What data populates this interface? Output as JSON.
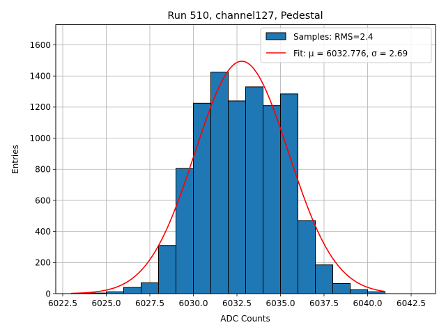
{
  "chart_data": {
    "type": "bar",
    "title": "Run 510, channel127, Pedestal",
    "xlabel": "ADC Counts",
    "ylabel": "Entries",
    "xlim": [
      6022.1,
      6043.9
    ],
    "ylim": [
      0,
      1730
    ],
    "grid": true,
    "legend_position": "top-right",
    "xticks": [
      6022.5,
      6025.0,
      6027.5,
      6030.0,
      6032.5,
      6035.0,
      6037.5,
      6040.0,
      6042.5
    ],
    "xtick_labels": [
      "6022.5",
      "6025.0",
      "6027.5",
      "6030.0",
      "6032.5",
      "6035.0",
      "6037.5",
      "6040.0",
      "6042.5"
    ],
    "yticks": [
      0,
      200,
      400,
      600,
      800,
      1000,
      1200,
      1400,
      1600
    ],
    "ytick_labels": [
      "0",
      "200",
      "400",
      "600",
      "800",
      "1000",
      "1200",
      "1400",
      "1600"
    ],
    "histogram": {
      "name": "Samples: RMS=2.4",
      "color": "#1f77b4",
      "edgecolor": "#000000",
      "bin_edges": [
        6023,
        6024,
        6025,
        6026,
        6027,
        6028,
        6029,
        6030,
        6031,
        6032,
        6033,
        6034,
        6035,
        6036,
        6037,
        6038,
        6039,
        6040,
        6041
      ],
      "counts": [
        2,
        4,
        12,
        40,
        70,
        310,
        805,
        1225,
        1425,
        1240,
        1330,
        1210,
        1285,
        470,
        185,
        65,
        25,
        12
      ]
    },
    "fit": {
      "name": "Fit: μ = 6032.776, σ = 2.69",
      "color": "#ff0000",
      "mu": 6032.776,
      "sigma": 2.69,
      "amplitude": 1495,
      "x_range": [
        6023,
        6041
      ]
    }
  }
}
